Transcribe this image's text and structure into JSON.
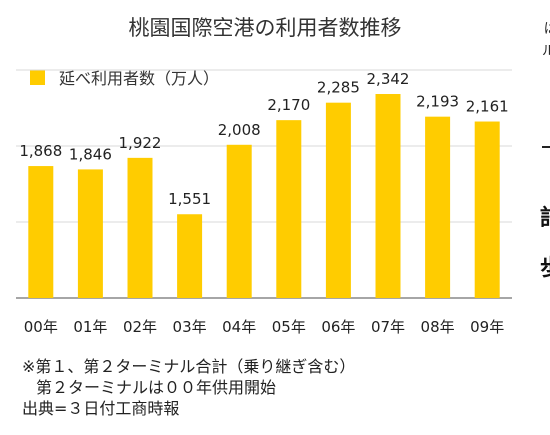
{
  "chart_data": {
    "type": "bar",
    "title": "桃園国際空港の利用者数推移",
    "categories": [
      "00年",
      "01年",
      "02年",
      "03年",
      "04年",
      "05年",
      "06年",
      "07年",
      "08年",
      "09年"
    ],
    "series": [
      {
        "name": "延べ利用者数（万人）",
        "values": [
          1868,
          1846,
          1922,
          1551,
          2008,
          2170,
          2285,
          2342,
          2193,
          2161
        ]
      }
    ],
    "data_labels": [
      "1,868",
      "1,846",
      "1,922",
      "1,551",
      "2,008",
      "2,170",
      "2,285",
      "2,342",
      "2,193",
      "2,161"
    ],
    "ylim": [
      1000,
      2500
    ],
    "grid": true,
    "legend_position": "top-left",
    "bar_color": "#FFCC00",
    "grid_color": "#d9d9d9"
  },
  "notes": {
    "line1": "※第１、第２ターミナル合計（乗り継ぎ含む）",
    "line2": "第２ターミナルは００年供用開始",
    "source": "出典=３日付工商時報"
  },
  "right_partial": {
    "glyph_a": "ぱ",
    "glyph_b": "ル",
    "big1": "記",
    "big2": "歩"
  }
}
